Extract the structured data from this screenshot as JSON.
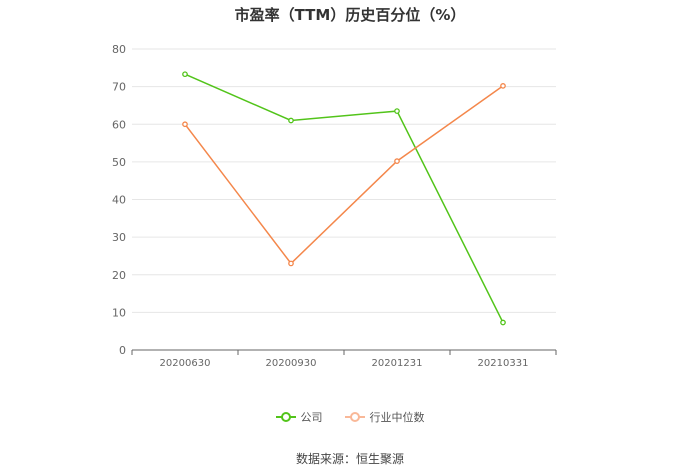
{
  "chart_data": {
    "type": "line",
    "title": "市盈率（TTM）历史百分位（%）",
    "categories": [
      "20200630",
      "20200930",
      "20201231",
      "20210331"
    ],
    "series": [
      {
        "name": "公司",
        "color": "#52c41a",
        "values": [
          73.3,
          61.0,
          63.5,
          7.3
        ]
      },
      {
        "name": "行业中位数",
        "color": "#f4874b",
        "values": [
          60.0,
          23.0,
          50.2,
          70.2
        ]
      }
    ],
    "y_ticks": [
      "0",
      "10",
      "20",
      "30",
      "40",
      "50",
      "60",
      "70",
      "80"
    ],
    "ylim": [
      0,
      80
    ],
    "grid": true,
    "legend_position": "bottom-center"
  },
  "source_note": "数据来源：恒生聚源"
}
